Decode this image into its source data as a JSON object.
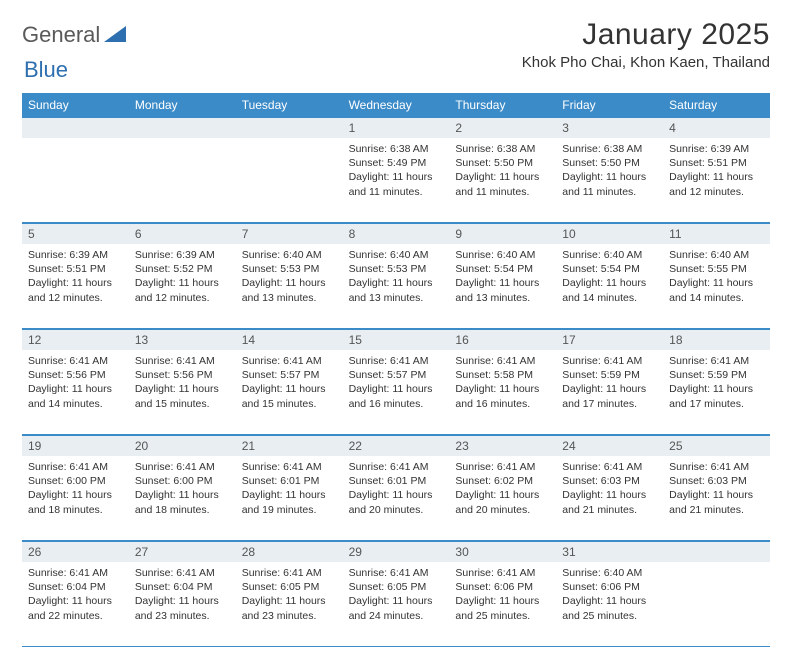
{
  "brand": {
    "name_a": "General",
    "name_b": "Blue"
  },
  "title": "January 2025",
  "location": "Khok Pho Chai, Khon Kaen, Thailand",
  "colors": {
    "header_bg": "#3b8bc9",
    "header_text": "#ffffff",
    "daynum_bg": "#e8eef2",
    "border": "#3b8bc9",
    "page_bg": "#ffffff",
    "text": "#333333",
    "logo_text": "#5a5a5a",
    "logo_triangle": "#2e6fb0"
  },
  "weekdays": [
    "Sunday",
    "Monday",
    "Tuesday",
    "Wednesday",
    "Thursday",
    "Friday",
    "Saturday"
  ],
  "weeks": [
    [
      {
        "n": "",
        "sunrise": "",
        "sunset": "",
        "daylight": ""
      },
      {
        "n": "",
        "sunrise": "",
        "sunset": "",
        "daylight": ""
      },
      {
        "n": "",
        "sunrise": "",
        "sunset": "",
        "daylight": ""
      },
      {
        "n": "1",
        "sunrise": "Sunrise: 6:38 AM",
        "sunset": "Sunset: 5:49 PM",
        "daylight": "Daylight: 11 hours and 11 minutes."
      },
      {
        "n": "2",
        "sunrise": "Sunrise: 6:38 AM",
        "sunset": "Sunset: 5:50 PM",
        "daylight": "Daylight: 11 hours and 11 minutes."
      },
      {
        "n": "3",
        "sunrise": "Sunrise: 6:38 AM",
        "sunset": "Sunset: 5:50 PM",
        "daylight": "Daylight: 11 hours and 11 minutes."
      },
      {
        "n": "4",
        "sunrise": "Sunrise: 6:39 AM",
        "sunset": "Sunset: 5:51 PM",
        "daylight": "Daylight: 11 hours and 12 minutes."
      }
    ],
    [
      {
        "n": "5",
        "sunrise": "Sunrise: 6:39 AM",
        "sunset": "Sunset: 5:51 PM",
        "daylight": "Daylight: 11 hours and 12 minutes."
      },
      {
        "n": "6",
        "sunrise": "Sunrise: 6:39 AM",
        "sunset": "Sunset: 5:52 PM",
        "daylight": "Daylight: 11 hours and 12 minutes."
      },
      {
        "n": "7",
        "sunrise": "Sunrise: 6:40 AM",
        "sunset": "Sunset: 5:53 PM",
        "daylight": "Daylight: 11 hours and 13 minutes."
      },
      {
        "n": "8",
        "sunrise": "Sunrise: 6:40 AM",
        "sunset": "Sunset: 5:53 PM",
        "daylight": "Daylight: 11 hours and 13 minutes."
      },
      {
        "n": "9",
        "sunrise": "Sunrise: 6:40 AM",
        "sunset": "Sunset: 5:54 PM",
        "daylight": "Daylight: 11 hours and 13 minutes."
      },
      {
        "n": "10",
        "sunrise": "Sunrise: 6:40 AM",
        "sunset": "Sunset: 5:54 PM",
        "daylight": "Daylight: 11 hours and 14 minutes."
      },
      {
        "n": "11",
        "sunrise": "Sunrise: 6:40 AM",
        "sunset": "Sunset: 5:55 PM",
        "daylight": "Daylight: 11 hours and 14 minutes."
      }
    ],
    [
      {
        "n": "12",
        "sunrise": "Sunrise: 6:41 AM",
        "sunset": "Sunset: 5:56 PM",
        "daylight": "Daylight: 11 hours and 14 minutes."
      },
      {
        "n": "13",
        "sunrise": "Sunrise: 6:41 AM",
        "sunset": "Sunset: 5:56 PM",
        "daylight": "Daylight: 11 hours and 15 minutes."
      },
      {
        "n": "14",
        "sunrise": "Sunrise: 6:41 AM",
        "sunset": "Sunset: 5:57 PM",
        "daylight": "Daylight: 11 hours and 15 minutes."
      },
      {
        "n": "15",
        "sunrise": "Sunrise: 6:41 AM",
        "sunset": "Sunset: 5:57 PM",
        "daylight": "Daylight: 11 hours and 16 minutes."
      },
      {
        "n": "16",
        "sunrise": "Sunrise: 6:41 AM",
        "sunset": "Sunset: 5:58 PM",
        "daylight": "Daylight: 11 hours and 16 minutes."
      },
      {
        "n": "17",
        "sunrise": "Sunrise: 6:41 AM",
        "sunset": "Sunset: 5:59 PM",
        "daylight": "Daylight: 11 hours and 17 minutes."
      },
      {
        "n": "18",
        "sunrise": "Sunrise: 6:41 AM",
        "sunset": "Sunset: 5:59 PM",
        "daylight": "Daylight: 11 hours and 17 minutes."
      }
    ],
    [
      {
        "n": "19",
        "sunrise": "Sunrise: 6:41 AM",
        "sunset": "Sunset: 6:00 PM",
        "daylight": "Daylight: 11 hours and 18 minutes."
      },
      {
        "n": "20",
        "sunrise": "Sunrise: 6:41 AM",
        "sunset": "Sunset: 6:00 PM",
        "daylight": "Daylight: 11 hours and 18 minutes."
      },
      {
        "n": "21",
        "sunrise": "Sunrise: 6:41 AM",
        "sunset": "Sunset: 6:01 PM",
        "daylight": "Daylight: 11 hours and 19 minutes."
      },
      {
        "n": "22",
        "sunrise": "Sunrise: 6:41 AM",
        "sunset": "Sunset: 6:01 PM",
        "daylight": "Daylight: 11 hours and 20 minutes."
      },
      {
        "n": "23",
        "sunrise": "Sunrise: 6:41 AM",
        "sunset": "Sunset: 6:02 PM",
        "daylight": "Daylight: 11 hours and 20 minutes."
      },
      {
        "n": "24",
        "sunrise": "Sunrise: 6:41 AM",
        "sunset": "Sunset: 6:03 PM",
        "daylight": "Daylight: 11 hours and 21 minutes."
      },
      {
        "n": "25",
        "sunrise": "Sunrise: 6:41 AM",
        "sunset": "Sunset: 6:03 PM",
        "daylight": "Daylight: 11 hours and 21 minutes."
      }
    ],
    [
      {
        "n": "26",
        "sunrise": "Sunrise: 6:41 AM",
        "sunset": "Sunset: 6:04 PM",
        "daylight": "Daylight: 11 hours and 22 minutes."
      },
      {
        "n": "27",
        "sunrise": "Sunrise: 6:41 AM",
        "sunset": "Sunset: 6:04 PM",
        "daylight": "Daylight: 11 hours and 23 minutes."
      },
      {
        "n": "28",
        "sunrise": "Sunrise: 6:41 AM",
        "sunset": "Sunset: 6:05 PM",
        "daylight": "Daylight: 11 hours and 23 minutes."
      },
      {
        "n": "29",
        "sunrise": "Sunrise: 6:41 AM",
        "sunset": "Sunset: 6:05 PM",
        "daylight": "Daylight: 11 hours and 24 minutes."
      },
      {
        "n": "30",
        "sunrise": "Sunrise: 6:41 AM",
        "sunset": "Sunset: 6:06 PM",
        "daylight": "Daylight: 11 hours and 25 minutes."
      },
      {
        "n": "31",
        "sunrise": "Sunrise: 6:40 AM",
        "sunset": "Sunset: 6:06 PM",
        "daylight": "Daylight: 11 hours and 25 minutes."
      },
      {
        "n": "",
        "sunrise": "",
        "sunset": "",
        "daylight": ""
      }
    ]
  ]
}
